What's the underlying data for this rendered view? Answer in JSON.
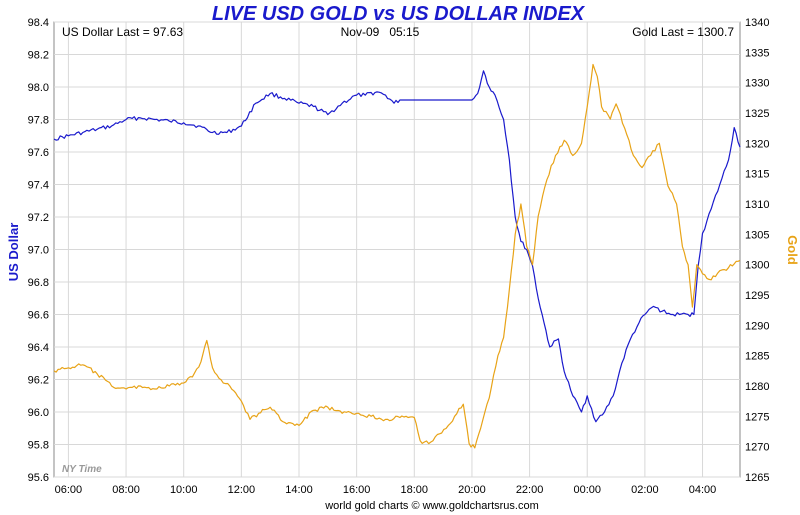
{
  "chart_data": {
    "type": "line",
    "title": "LIVE USD GOLD vs US DOLLAR INDEX",
    "header": {
      "left": "US Dollar Last = 97.63",
      "center": "Nov-09   05:15",
      "right": "Gold Last = 1300.7"
    },
    "timezone_label": "NY Time",
    "footer": "world gold charts © www.goldchartsrus.com",
    "x_tick_labels": [
      "06:00",
      "08:00",
      "10:00",
      "12:00",
      "14:00",
      "16:00",
      "18:00",
      "20:00",
      "22:00",
      "00:00",
      "02:00",
      "04:00"
    ],
    "x_ticks_hours": [
      6,
      8,
      10,
      12,
      14,
      16,
      18,
      20,
      22,
      24,
      26,
      28
    ],
    "xlim_hours": [
      5.5,
      29.3
    ],
    "left_axis": {
      "label": "US Dollar",
      "ylim": [
        95.6,
        98.4
      ],
      "ticks": [
        "95.6",
        "95.8",
        "96.0",
        "96.2",
        "96.4",
        "96.6",
        "96.8",
        "97.0",
        "97.2",
        "97.4",
        "97.6",
        "97.8",
        "98.0",
        "98.2",
        "98.4"
      ],
      "color": "#1a1acc"
    },
    "right_axis": {
      "label": "Gold",
      "ylim": [
        1265,
        1340
      ],
      "ticks": [
        "1265",
        "1270",
        "1275",
        "1280",
        "1285",
        "1290",
        "1295",
        "1300",
        "1305",
        "1310",
        "1315",
        "1320",
        "1325",
        "1330",
        "1335",
        "1340"
      ],
      "color": "#e8a317"
    },
    "series": [
      {
        "name": "US Dollar",
        "axis": "left",
        "color": "#1a1acc",
        "points": [
          [
            5.5,
            97.68
          ],
          [
            6.0,
            97.7
          ],
          [
            6.5,
            97.72
          ],
          [
            7.0,
            97.74
          ],
          [
            7.5,
            97.76
          ],
          [
            8.0,
            97.8
          ],
          [
            8.5,
            97.81
          ],
          [
            9.0,
            97.8
          ],
          [
            9.5,
            97.79
          ],
          [
            10.0,
            97.78
          ],
          [
            10.5,
            97.76
          ],
          [
            11.0,
            97.72
          ],
          [
            11.5,
            97.72
          ],
          [
            12.0,
            97.76
          ],
          [
            12.5,
            97.9
          ],
          [
            13.0,
            97.96
          ],
          [
            13.5,
            97.93
          ],
          [
            14.0,
            97.9
          ],
          [
            14.5,
            97.88
          ],
          [
            15.0,
            97.83
          ],
          [
            15.5,
            97.9
          ],
          [
            16.0,
            97.95
          ],
          [
            16.3,
            97.95
          ],
          [
            16.7,
            97.97
          ],
          [
            17.0,
            97.95
          ],
          [
            17.3,
            97.9
          ],
          [
            17.5,
            97.92
          ],
          [
            20.0,
            97.92
          ],
          [
            20.2,
            97.96
          ],
          [
            20.4,
            98.1
          ],
          [
            20.6,
            98.0
          ],
          [
            20.8,
            97.95
          ],
          [
            21.1,
            97.8
          ],
          [
            21.3,
            97.55
          ],
          [
            21.5,
            97.2
          ],
          [
            21.7,
            97.05
          ],
          [
            21.9,
            97.0
          ],
          [
            22.1,
            96.9
          ],
          [
            22.3,
            96.7
          ],
          [
            22.5,
            96.55
          ],
          [
            22.7,
            96.4
          ],
          [
            23.0,
            96.45
          ],
          [
            23.2,
            96.25
          ],
          [
            23.5,
            96.1
          ],
          [
            23.8,
            96.0
          ],
          [
            24.0,
            96.1
          ],
          [
            24.3,
            95.94
          ],
          [
            24.6,
            96.0
          ],
          [
            24.9,
            96.1
          ],
          [
            25.2,
            96.3
          ],
          [
            25.5,
            96.45
          ],
          [
            25.8,
            96.55
          ],
          [
            26.0,
            96.6
          ],
          [
            26.3,
            96.65
          ],
          [
            26.6,
            96.62
          ],
          [
            26.9,
            96.6
          ],
          [
            27.2,
            96.6
          ],
          [
            27.5,
            96.6
          ],
          [
            27.7,
            96.6
          ],
          [
            27.85,
            96.9
          ],
          [
            28.0,
            97.1
          ],
          [
            28.3,
            97.25
          ],
          [
            28.6,
            97.4
          ],
          [
            28.9,
            97.55
          ],
          [
            29.1,
            97.75
          ],
          [
            29.3,
            97.63
          ]
        ]
      },
      {
        "name": "Gold",
        "axis": "right",
        "color": "#e8a317",
        "points": [
          [
            5.5,
            1282.5
          ],
          [
            6.0,
            1283.0
          ],
          [
            6.5,
            1283.5
          ],
          [
            7.0,
            1282.0
          ],
          [
            7.5,
            1280.0
          ],
          [
            8.0,
            1279.5
          ],
          [
            8.5,
            1280.0
          ],
          [
            9.0,
            1279.5
          ],
          [
            9.5,
            1280.0
          ],
          [
            10.0,
            1280.5
          ],
          [
            10.3,
            1281.5
          ],
          [
            10.6,
            1284.0
          ],
          [
            10.8,
            1287.5
          ],
          [
            11.0,
            1283.0
          ],
          [
            11.3,
            1281.0
          ],
          [
            11.6,
            1280.0
          ],
          [
            12.0,
            1277.5
          ],
          [
            12.3,
            1274.5
          ],
          [
            12.6,
            1275.5
          ],
          [
            13.0,
            1276.5
          ],
          [
            13.5,
            1274.0
          ],
          [
            14.0,
            1273.5
          ],
          [
            14.5,
            1276.0
          ],
          [
            15.0,
            1276.5
          ],
          [
            15.5,
            1275.5
          ],
          [
            16.0,
            1275.5
          ],
          [
            16.5,
            1275.0
          ],
          [
            17.0,
            1274.5
          ],
          [
            17.5,
            1274.8
          ],
          [
            18.0,
            1274.8
          ],
          [
            18.2,
            1271.0
          ],
          [
            18.5,
            1270.5
          ],
          [
            18.8,
            1272.0
          ],
          [
            19.1,
            1273.0
          ],
          [
            19.4,
            1275.0
          ],
          [
            19.7,
            1277.0
          ],
          [
            19.9,
            1270.5
          ],
          [
            20.1,
            1269.8
          ],
          [
            20.3,
            1273.0
          ],
          [
            20.6,
            1278.0
          ],
          [
            20.9,
            1285.0
          ],
          [
            21.1,
            1288.0
          ],
          [
            21.3,
            1296.0
          ],
          [
            21.5,
            1305.0
          ],
          [
            21.7,
            1310.0
          ],
          [
            21.9,
            1303.0
          ],
          [
            22.1,
            1300.0
          ],
          [
            22.3,
            1308.0
          ],
          [
            22.6,
            1314.0
          ],
          [
            22.9,
            1318.0
          ],
          [
            23.2,
            1320.5
          ],
          [
            23.5,
            1318.0
          ],
          [
            23.8,
            1320.0
          ],
          [
            24.0,
            1326.0
          ],
          [
            24.2,
            1333.0
          ],
          [
            24.35,
            1331.0
          ],
          [
            24.5,
            1326.0
          ],
          [
            24.8,
            1324.0
          ],
          [
            25.0,
            1326.5
          ],
          [
            25.3,
            1322.5
          ],
          [
            25.6,
            1318.0
          ],
          [
            25.9,
            1316.0
          ],
          [
            26.2,
            1318.0
          ],
          [
            26.5,
            1320.0
          ],
          [
            26.8,
            1313.0
          ],
          [
            27.1,
            1310.0
          ],
          [
            27.3,
            1303.0
          ],
          [
            27.5,
            1300.0
          ],
          [
            27.65,
            1293.0
          ],
          [
            27.8,
            1300.0
          ],
          [
            28.0,
            1298.5
          ],
          [
            28.3,
            1297.5
          ],
          [
            28.6,
            1299.0
          ],
          [
            28.9,
            1299.5
          ],
          [
            29.3,
            1300.7
          ]
        ]
      }
    ]
  }
}
